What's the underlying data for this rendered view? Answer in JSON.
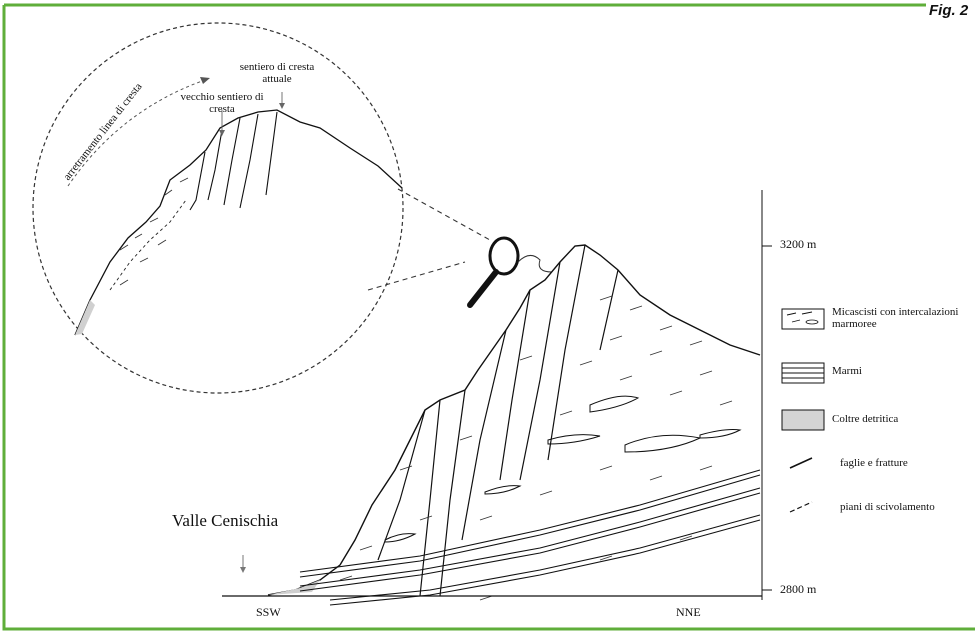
{
  "figure": {
    "tag": "Fig. 2",
    "border_color": "#5fae3a"
  },
  "inset": {
    "current_trail": "sentiero di cresta attuale",
    "old_trail": "vecchio sentiero di cresta",
    "retreat": "arretramento linea di cresta"
  },
  "section": {
    "valley": "Valle Cenischia",
    "left_end": "SSW",
    "right_end": "NNE",
    "elev_top": "3200 m",
    "elev_bottom": "2800 m"
  },
  "legend": {
    "items": [
      {
        "label": "Micascisti con intercalazioni marmoree",
        "symbol": "schist-box"
      },
      {
        "label": "Marmi",
        "symbol": "marble-box"
      },
      {
        "label": "Coltre detritica",
        "symbol": "debris-box"
      },
      {
        "label": "faglie e fratture",
        "symbol": "solid-line"
      },
      {
        "label": "piani di scivolamento",
        "symbol": "dashed-line"
      }
    ],
    "debris_color": "#d4d4d4"
  }
}
